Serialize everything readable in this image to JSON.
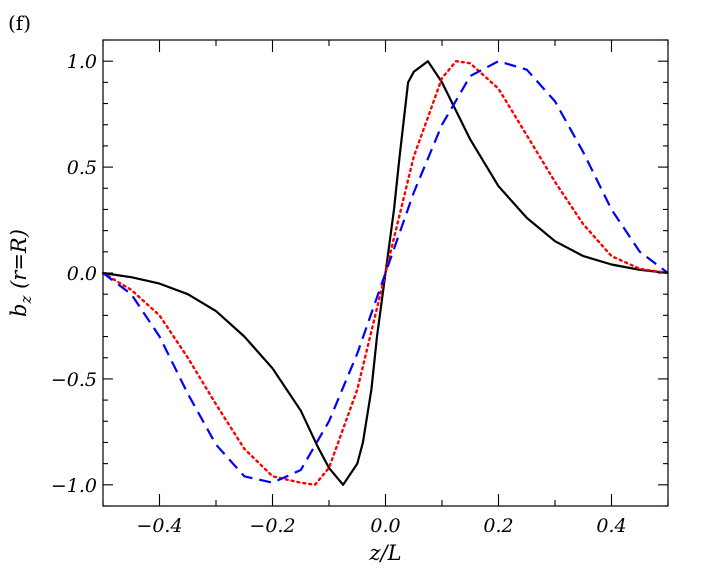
{
  "panel_label": "(f)",
  "chart_data": {
    "type": "line",
    "xlabel": "z/L",
    "ylabel": "b_z (r=R)",
    "xlim": [
      -0.5,
      0.5
    ],
    "ylim": [
      -1.1,
      1.1
    ],
    "x_ticks": [
      -0.4,
      -0.2,
      0.0,
      0.2,
      0.4
    ],
    "x_tick_labels": [
      "−0.4",
      "−0.2",
      "0.0",
      "0.2",
      "0.4"
    ],
    "y_ticks": [
      -1.0,
      -0.5,
      0.0,
      0.5,
      1.0
    ],
    "y_tick_labels": [
      "−1.0",
      "−0.5",
      "0.0",
      "0.5",
      "1.0"
    ],
    "series": [
      {
        "style": "solid",
        "color": "#000000",
        "x": [
          -0.5,
          -0.45,
          -0.4,
          -0.35,
          -0.3,
          -0.25,
          -0.2,
          -0.15,
          -0.12,
          -0.1,
          -0.075,
          -0.05,
          -0.04,
          -0.025,
          -0.015,
          0.0,
          0.015,
          0.025,
          0.04,
          0.05,
          0.075,
          0.1,
          0.15,
          0.2,
          0.25,
          0.3,
          0.35,
          0.4,
          0.45,
          0.5
        ],
        "y": [
          0.0,
          -0.02,
          -0.05,
          -0.1,
          -0.18,
          -0.3,
          -0.45,
          -0.65,
          -0.82,
          -0.92,
          -1.0,
          -0.9,
          -0.8,
          -0.55,
          -0.3,
          0.0,
          0.3,
          0.55,
          0.9,
          0.95,
          1.0,
          0.9,
          0.63,
          0.41,
          0.26,
          0.15,
          0.08,
          0.04,
          0.015,
          0.0
        ]
      },
      {
        "style": "dotted",
        "color": "#ff0000",
        "x": [
          -0.5,
          -0.45,
          -0.4,
          -0.35,
          -0.3,
          -0.25,
          -0.2,
          -0.15,
          -0.125,
          -0.1,
          -0.05,
          0.0,
          0.05,
          0.1,
          0.125,
          0.15,
          0.2,
          0.25,
          0.3,
          0.35,
          0.4,
          0.45,
          0.5
        ],
        "y": [
          0.0,
          -0.08,
          -0.2,
          -0.4,
          -0.62,
          -0.83,
          -0.96,
          -0.99,
          -1.0,
          -0.92,
          -0.55,
          0.0,
          0.55,
          0.92,
          1.0,
          0.99,
          0.87,
          0.65,
          0.43,
          0.23,
          0.08,
          0.02,
          0.0
        ]
      },
      {
        "style": "dashed",
        "color": "#0000ff",
        "x": [
          -0.5,
          -0.45,
          -0.4,
          -0.35,
          -0.3,
          -0.25,
          -0.2,
          -0.15,
          -0.1,
          -0.05,
          0.0,
          0.05,
          0.1,
          0.15,
          0.2,
          0.25,
          0.3,
          0.35,
          0.4,
          0.45,
          0.5
        ],
        "y": [
          0.0,
          -0.1,
          -0.3,
          -0.57,
          -0.81,
          -0.96,
          -0.99,
          -0.93,
          -0.7,
          -0.38,
          0.0,
          0.38,
          0.7,
          0.93,
          1.0,
          0.96,
          0.81,
          0.57,
          0.3,
          0.1,
          0.0
        ]
      }
    ]
  }
}
